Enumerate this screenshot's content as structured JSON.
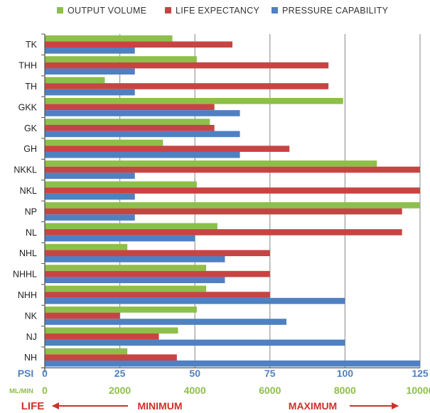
{
  "chart_data": {
    "type": "bar",
    "orientation": "horizontal",
    "categories": [
      "TK",
      "THH",
      "TH",
      "GKK",
      "GK",
      "GH",
      "NKKL",
      "NKL",
      "NP",
      "NL",
      "NHL",
      "NHHL",
      "NHH",
      "NK",
      "NJ",
      "NH"
    ],
    "series": [
      {
        "name": "OUTPUT VOLUME",
        "color": "#8dbf4a",
        "values": [
          3400,
          4050,
          1600,
          7950,
          4400,
          3150,
          8850,
          4050,
          10000,
          4600,
          2200,
          4300,
          4300,
          4050,
          3550,
          2200
        ]
      },
      {
        "name": "LIFE EXPECTANCY",
        "color": "#c84443",
        "values": [
          62.5,
          94.5,
          94.5,
          56.5,
          56.5,
          81.5,
          125,
          125,
          119,
          119,
          75,
          75,
          75,
          25,
          38,
          44
        ]
      },
      {
        "name": "PRESSURE CAPABILITY",
        "color": "#4f80c2",
        "values": [
          30,
          30,
          30,
          65,
          65,
          65,
          30,
          30,
          30,
          50,
          60,
          60,
          100,
          80.5,
          100,
          125
        ]
      }
    ],
    "axes": {
      "psi": {
        "label": "PSI",
        "color": "#4f80c2",
        "min": 0,
        "max": 125,
        "ticks": [
          "0",
          "25",
          "50",
          "75",
          "100",
          "125"
        ]
      },
      "ml_min": {
        "label": "ML/MIN",
        "color": "#8dbf4a",
        "min": 0,
        "max": 10000,
        "ticks": [
          "0",
          "2000",
          "4000",
          "6000",
          "8000",
          "10000"
        ]
      }
    },
    "life_row": {
      "label": "LIFE",
      "minimum": "MINIMUM",
      "maximum": "MAXIMUM",
      "color": "#d0302a"
    },
    "grid": true,
    "legend_position": "top"
  }
}
